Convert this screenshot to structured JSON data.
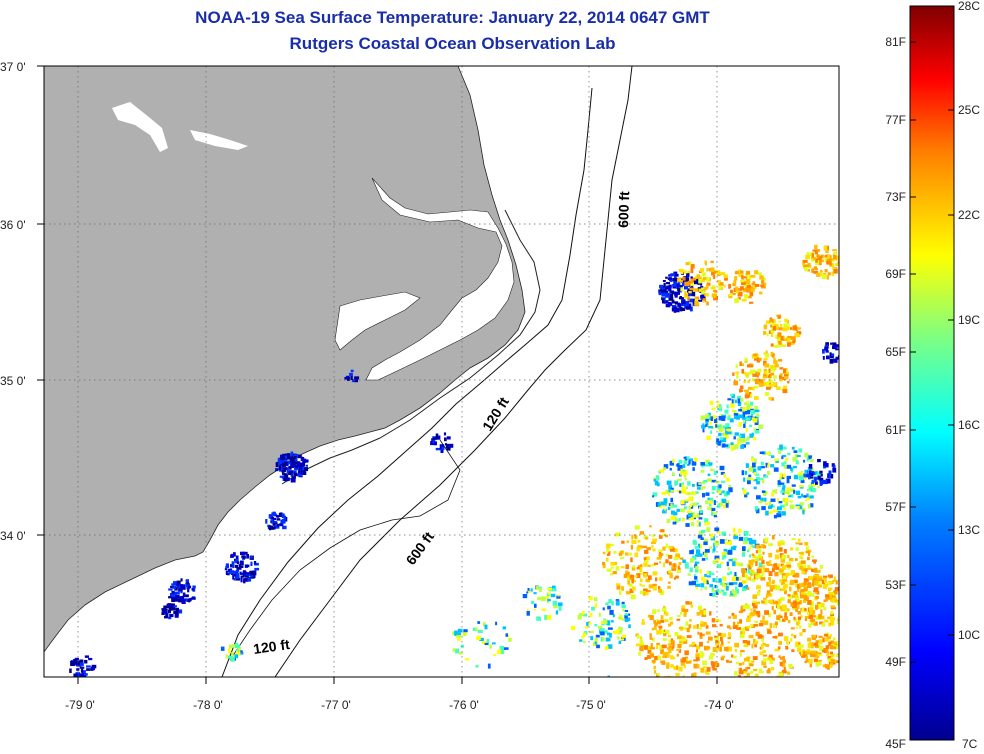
{
  "header": {
    "title": "NOAA-19 Sea Surface Temperature:  January 22, 2014 0647 GMT",
    "subtitle": "Rutgers Coastal Ocean Observation Lab"
  },
  "map": {
    "lon_labels": [
      "-79 0'",
      "-78 0'",
      "-77 0'",
      "-76 0'",
      "-75 0'",
      "-74 0'"
    ],
    "lat_labels": [
      "37 0'",
      "36 0'",
      "35 0'",
      "34 0'"
    ],
    "contour_labels": {
      "c600_north": "600 ft",
      "c120_mid": "120 ft",
      "c600_south": "600 ft",
      "c120_south": "120 ft"
    },
    "colors": {
      "land": "#b0b0b0",
      "ocean": "#ffffff",
      "title": "#1a2ea8"
    }
  },
  "colorbar": {
    "fahrenheit_labels": [
      "81F",
      "77F",
      "73F",
      "69F",
      "65F",
      "61F",
      "57F",
      "53F",
      "49F",
      "45F"
    ],
    "celsius_labels": [
      "28C",
      "25C",
      "22C",
      "19C",
      "16C",
      "13C",
      "10C",
      "7C"
    ],
    "colors": [
      "#00008f",
      "#0000ff",
      "#0080ff",
      "#00ffff",
      "#80ff80",
      "#ffff00",
      "#ff8000",
      "#ff0000",
      "#800000"
    ]
  }
}
